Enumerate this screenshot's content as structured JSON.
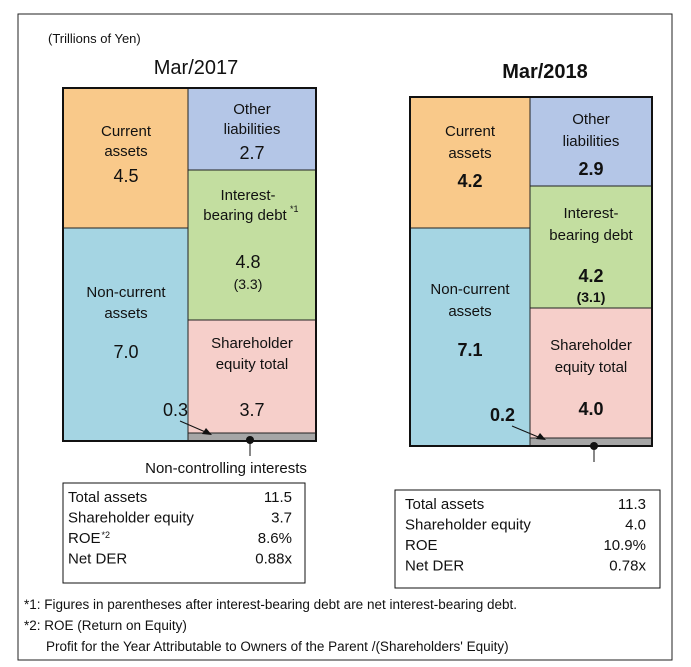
{
  "unit": "(Trillions of Yen)",
  "panels": [
    {
      "title": "Mar/2017",
      "current_assets": {
        "label": [
          "Current",
          "assets"
        ],
        "value": "4.5"
      },
      "non_current_assets": {
        "label": [
          "Non-current",
          "assets"
        ],
        "value": "7.0"
      },
      "other_liabilities": {
        "label": [
          "Other",
          "liabilities"
        ],
        "value": "2.7"
      },
      "interest_bearing_debt": {
        "label": [
          "Interest-",
          "bearing debt"
        ],
        "note": "*1",
        "value": "4.8",
        "net": "(3.3)"
      },
      "shareholder_equity_total": {
        "label": [
          "Shareholder",
          "equity total"
        ],
        "value": "3.7"
      },
      "non_controlling_interests": {
        "label": "Non-controlling  interests",
        "value": "0.3"
      },
      "table": [
        {
          "label": "Total assets",
          "value": "11.5"
        },
        {
          "label": "Shareholder equity",
          "value": "3.7"
        },
        {
          "label": "ROE",
          "note": "*2",
          "value": "8.6%"
        },
        {
          "label": "Net DER",
          "value": "0.88x"
        }
      ]
    },
    {
      "title": "Mar/2018",
      "current_assets": {
        "label": [
          "Current",
          "assets"
        ],
        "value": "4.2"
      },
      "non_current_assets": {
        "label": [
          "Non-current",
          "assets"
        ],
        "value": "7.1"
      },
      "other_liabilities": {
        "label": [
          "Other",
          "liabilities"
        ],
        "value": "2.9"
      },
      "interest_bearing_debt": {
        "label": [
          "Interest-",
          "bearing debt"
        ],
        "value": "4.2",
        "net": "(3.1)"
      },
      "shareholder_equity_total": {
        "label": [
          "Shareholder",
          "equity total"
        ],
        "value": "4.0"
      },
      "non_controlling_interests": {
        "value": "0.2"
      },
      "table": [
        {
          "label": "Total assets",
          "value": "11.3"
        },
        {
          "label": "Shareholder equity",
          "value": "4.0"
        },
        {
          "label": "ROE",
          "value": "10.9%"
        },
        {
          "label": "Net DER",
          "value": "0.78x"
        }
      ]
    }
  ],
  "footnotes": [
    "*1: Figures in parentheses after interest-bearing debt are net interest-bearing debt.",
    "*2: ROE (Return on Equity)",
    "Profit for the Year Attributable to Owners of the Parent /(Shareholders' Equity)"
  ]
}
